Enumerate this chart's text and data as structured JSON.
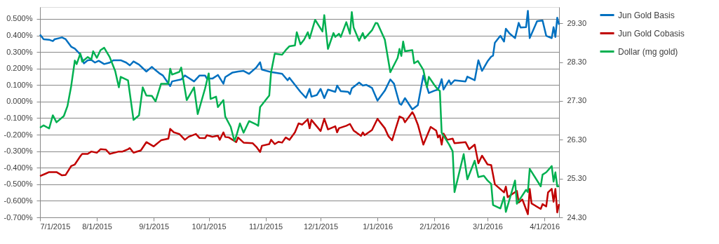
{
  "chart_data": {
    "type": "line",
    "xlim": [
      "2015-07-01",
      "2016-04-09"
    ],
    "xticks": [
      {
        "value": "2015-07-01",
        "label": "7/1/2015"
      },
      {
        "value": "2015-08-01",
        "label": "8/1/2015"
      },
      {
        "value": "2015-09-01",
        "label": "9/1/2015"
      },
      {
        "value": "2015-10-01",
        "label": "10/1/2015"
      },
      {
        "value": "2015-11-01",
        "label": "11/1/2015"
      },
      {
        "value": "2015-12-01",
        "label": "12/1/2015"
      },
      {
        "value": "2016-01-01",
        "label": "1/1/2016"
      },
      {
        "value": "2016-02-01",
        "label": "2/1/2016"
      },
      {
        "value": "2016-03-01",
        "label": "3/1/2016"
      },
      {
        "value": "2016-04-01",
        "label": "4/1/2016"
      }
    ],
    "ylim": [
      -0.7,
      0.572
    ],
    "yticks": [
      {
        "value": -0.7,
        "label": "-0.700%"
      },
      {
        "value": -0.6,
        "label": "-0.600%"
      },
      {
        "value": -0.5,
        "label": "-0.500%"
      },
      {
        "value": -0.4,
        "label": "-0.400%"
      },
      {
        "value": -0.3,
        "label": "-0.300%"
      },
      {
        "value": -0.2,
        "label": "-0.200%"
      },
      {
        "value": -0.1,
        "label": "-0.100%"
      },
      {
        "value": 0,
        "label": "0.000%"
      },
      {
        "value": 0.1,
        "label": "0.100%"
      },
      {
        "value": 0.2,
        "label": "0.200%"
      },
      {
        "value": 0.3,
        "label": "0.300%"
      },
      {
        "value": 0.4,
        "label": "0.400%"
      },
      {
        "value": 0.5,
        "label": "0.500%"
      }
    ],
    "y2lim": [
      24.3,
      29.72
    ],
    "y2ticks": [
      {
        "value": 24.3,
        "label": "24.30"
      },
      {
        "value": 25.3,
        "label": "25.30"
      },
      {
        "value": 26.3,
        "label": "26.30"
      },
      {
        "value": 27.3,
        "label": "27.30"
      },
      {
        "value": 28.3,
        "label": "28.30"
      },
      {
        "value": 29.3,
        "label": "29.30"
      }
    ],
    "grid": "y",
    "legend": "right",
    "line_style": "solid",
    "marker": "none",
    "series": [
      {
        "name": "Jun Gold Basis",
        "color": "#0070c0",
        "x": [
          "2015-07-01",
          "2015-07-03",
          "2015-07-06",
          "2015-07-08",
          "2015-07-09",
          "2015-07-13",
          "2015-07-15",
          "2015-07-18",
          "2015-07-20",
          "2015-07-23",
          "2015-07-25",
          "2015-07-27",
          "2015-07-29",
          "2015-07-31",
          "2015-08-02",
          "2015-08-05",
          "2015-08-08",
          "2015-08-10",
          "2015-08-14",
          "2015-08-17",
          "2015-08-19",
          "2015-08-21",
          "2015-08-24",
          "2015-08-28",
          "2015-08-31",
          "2015-09-02",
          "2015-09-04",
          "2015-09-06",
          "2015-09-10",
          "2015-09-11",
          "2015-09-16",
          "2015-09-18",
          "2015-09-20",
          "2015-09-23",
          "2015-09-26",
          "2015-09-29",
          "2015-09-30",
          "2015-10-03",
          "2015-10-06",
          "2015-10-09",
          "2015-10-10",
          "2015-10-14",
          "2015-10-17",
          "2015-10-20",
          "2015-10-23",
          "2015-10-27",
          "2015-10-29",
          "2015-10-30",
          "2015-11-04",
          "2015-11-10",
          "2015-11-13",
          "2015-11-14",
          "2015-11-17",
          "2015-11-20",
          "2015-11-23",
          "2015-11-25",
          "2015-11-26",
          "2015-11-29",
          "2015-12-01",
          "2015-12-03",
          "2015-12-05",
          "2015-12-09",
          "2015-12-10",
          "2015-12-12",
          "2015-12-16",
          "2015-12-17",
          "2015-12-18",
          "2015-12-22",
          "2015-12-24",
          "2015-12-26",
          "2015-12-29",
          "2016-01-01",
          "2016-01-05",
          "2016-01-08",
          "2016-01-10",
          "2016-01-13",
          "2016-01-14",
          "2016-01-16",
          "2016-01-20",
          "2016-01-23",
          "2016-01-26",
          "2016-01-29",
          "2016-02-01",
          "2016-02-03",
          "2016-02-04",
          "2016-02-05",
          "2016-02-06",
          "2016-02-09",
          "2016-02-10",
          "2016-02-12",
          "2016-02-18",
          "2016-02-19",
          "2016-02-23",
          "2016-02-25",
          "2016-02-27",
          "2016-03-01",
          "2016-03-03",
          "2016-03-04",
          "2016-03-05",
          "2016-03-08",
          "2016-03-10",
          "2016-03-11",
          "2016-03-13",
          "2016-03-16",
          "2016-03-18",
          "2016-03-19",
          "2016-03-22",
          "2016-03-23",
          "2016-03-24",
          "2016-03-28",
          "2016-03-31",
          "2016-04-02",
          "2016-04-05",
          "2016-04-06",
          "2016-04-07",
          "2016-04-08",
          "2016-04-09"
        ],
        "values": [
          0.405,
          0.377,
          0.374,
          0.366,
          0.377,
          0.388,
          0.377,
          0.332,
          0.32,
          0.285,
          0.231,
          0.25,
          0.252,
          0.236,
          0.247,
          0.227,
          0.236,
          0.25,
          0.25,
          0.236,
          0.219,
          0.243,
          0.224,
          0.182,
          0.21,
          0.19,
          0.172,
          0.158,
          0.094,
          0.122,
          0.134,
          0.158,
          0.144,
          0.122,
          0.158,
          0.158,
          0.139,
          0.139,
          0.161,
          0.108,
          0.148,
          0.176,
          0.182,
          0.186,
          0.168,
          0.207,
          0.238,
          0.193,
          0.179,
          0.168,
          0.129,
          0.144,
          0.101,
          0.059,
          0.023,
          0.077,
          0.03,
          0.04,
          0.077,
          0.021,
          0.073,
          0.059,
          0.097,
          0.063,
          0.059,
          0.045,
          0.08,
          0.115,
          0.097,
          0.101,
          0.083,
          0.006,
          0.066,
          0.134,
          0.108,
          -0.012,
          -0.019,
          0.021,
          -0.047,
          -0.022,
          0.158,
          0.052,
          0.066,
          0.073,
          0.101,
          0.136,
          0.073,
          0.129,
          0.105,
          0.129,
          0.122,
          0.151,
          0.129,
          0.25,
          0.186,
          0.243,
          0.272,
          0.278,
          0.356,
          0.398,
          0.363,
          0.441,
          0.412,
          0.384,
          0.476,
          0.448,
          0.45,
          0.549,
          0.384,
          0.486,
          0.49,
          0.398,
          0.384,
          0.45,
          0.391,
          0.507,
          0.465
        ]
      },
      {
        "name": "Jun Gold Cobasis",
        "color": "#c00000",
        "x": [
          "2015-07-01",
          "2015-07-04",
          "2015-07-06",
          "2015-07-10",
          "2015-07-13",
          "2015-07-15",
          "2015-07-18",
          "2015-07-20",
          "2015-07-23",
          "2015-07-24",
          "2015-07-27",
          "2015-07-29",
          "2015-08-01",
          "2015-08-03",
          "2015-08-06",
          "2015-08-08",
          "2015-08-13",
          "2015-08-15",
          "2015-08-18",
          "2015-08-19",
          "2015-08-21",
          "2015-08-25",
          "2015-08-28",
          "2015-09-01",
          "2015-09-05",
          "2015-09-09",
          "2015-09-10",
          "2015-09-12",
          "2015-09-15",
          "2015-09-18",
          "2015-09-20",
          "2015-09-24",
          "2015-09-26",
          "2015-09-29",
          "2015-09-30",
          "2015-10-03",
          "2015-10-06",
          "2015-10-07",
          "2015-10-09",
          "2015-10-10",
          "2015-10-12",
          "2015-10-16",
          "2015-10-17",
          "2015-10-20",
          "2015-10-25",
          "2015-10-27",
          "2015-10-29",
          "2015-10-30",
          "2015-11-03",
          "2015-11-04",
          "2015-11-06",
          "2015-11-08",
          "2015-11-10",
          "2015-11-12",
          "2015-11-14",
          "2015-11-17",
          "2015-11-19",
          "2015-11-21",
          "2015-11-24",
          "2015-11-25",
          "2015-11-26",
          "2015-12-01",
          "2015-12-03",
          "2015-12-05",
          "2015-12-09",
          "2015-12-10",
          "2015-12-11",
          "2015-12-15",
          "2015-12-17",
          "2015-12-19",
          "2015-12-23",
          "2015-12-24",
          "2015-12-25",
          "2015-12-29",
          "2016-01-01",
          "2016-01-05",
          "2016-01-07",
          "2016-01-09",
          "2016-01-11",
          "2016-01-13",
          "2016-01-15",
          "2016-01-16",
          "2016-01-20",
          "2016-01-21",
          "2016-01-23",
          "2016-01-26",
          "2016-01-30",
          "2016-02-02",
          "2016-02-03",
          "2016-02-04",
          "2016-02-05",
          "2016-02-06",
          "2016-02-08",
          "2016-02-11",
          "2016-02-12",
          "2016-02-18",
          "2016-02-20",
          "2016-02-23",
          "2016-02-25",
          "2016-02-27",
          "2016-03-01",
          "2016-03-03",
          "2016-03-05",
          "2016-03-10",
          "2016-03-11",
          "2016-03-12",
          "2016-03-17",
          "2016-03-18",
          "2016-03-20",
          "2016-03-23",
          "2016-03-24",
          "2016-03-25",
          "2016-03-30",
          "2016-03-31",
          "2016-04-02",
          "2016-04-03",
          "2016-04-05",
          "2016-04-06",
          "2016-04-07",
          "2016-04-08",
          "2016-04-09"
        ],
        "values": [
          -0.45,
          -0.436,
          -0.426,
          -0.426,
          -0.446,
          -0.443,
          -0.39,
          -0.38,
          -0.33,
          -0.316,
          -0.316,
          -0.302,
          -0.309,
          -0.288,
          -0.291,
          -0.316,
          -0.302,
          -0.302,
          -0.288,
          -0.281,
          -0.309,
          -0.295,
          -0.245,
          -0.271,
          -0.234,
          -0.224,
          -0.165,
          -0.186,
          -0.196,
          -0.231,
          -0.213,
          -0.196,
          -0.22,
          -0.221,
          -0.203,
          -0.213,
          -0.206,
          -0.231,
          -0.186,
          -0.214,
          -0.217,
          -0.245,
          -0.217,
          -0.248,
          -0.252,
          -0.274,
          -0.305,
          -0.267,
          -0.257,
          -0.231,
          -0.257,
          -0.243,
          -0.248,
          -0.217,
          -0.231,
          -0.186,
          -0.132,
          -0.139,
          -0.107,
          -0.161,
          -0.111,
          -0.178,
          -0.104,
          -0.168,
          -0.149,
          -0.186,
          -0.161,
          -0.146,
          -0.135,
          -0.175,
          -0.207,
          -0.186,
          -0.203,
          -0.172,
          -0.104,
          -0.161,
          -0.21,
          -0.234,
          -0.161,
          -0.09,
          -0.101,
          -0.125,
          -0.064,
          -0.083,
          -0.139,
          -0.26,
          -0.153,
          -0.175,
          -0.217,
          -0.203,
          -0.26,
          -0.193,
          -0.231,
          -0.224,
          -0.252,
          -0.245,
          -0.288,
          -0.26,
          -0.373,
          -0.327,
          -0.38,
          -0.384,
          -0.5,
          -0.549,
          -0.514,
          -0.578,
          -0.54,
          -0.61,
          -0.592,
          -0.681,
          -0.528,
          -0.616,
          -0.649,
          -0.62,
          -0.634,
          -0.549,
          -0.528,
          -0.606,
          -0.528,
          -0.67,
          -0.62
        ]
      },
      {
        "name": "Dollar (mg gold)",
        "color": "#00b050",
        "axis": "y2",
        "x": [
          "2015-07-01",
          "2015-07-03",
          "2015-07-06",
          "2015-07-08",
          "2015-07-10",
          "2015-07-14",
          "2015-07-16",
          "2015-07-18",
          "2015-07-20",
          "2015-07-21",
          "2015-07-23",
          "2015-07-24",
          "2015-07-27",
          "2015-07-29",
          "2015-07-30",
          "2015-08-01",
          "2015-08-03",
          "2015-08-05",
          "2015-08-08",
          "2015-08-11",
          "2015-08-13",
          "2015-08-14",
          "2015-08-18",
          "2015-08-21",
          "2015-08-24",
          "2015-08-26",
          "2015-08-28",
          "2015-08-31",
          "2015-09-02",
          "2015-09-05",
          "2015-09-09",
          "2015-09-10",
          "2015-09-11",
          "2015-09-15",
          "2015-09-16",
          "2015-09-19",
          "2015-09-23",
          "2015-09-25",
          "2015-09-29",
          "2015-10-01",
          "2015-10-02",
          "2015-10-05",
          "2015-10-06",
          "2015-10-09",
          "2015-10-10",
          "2015-10-13",
          "2015-10-15",
          "2015-10-16",
          "2015-10-18",
          "2015-10-20",
          "2015-10-23",
          "2015-10-27",
          "2015-10-28",
          "2015-10-29",
          "2015-11-02",
          "2015-11-03",
          "2015-11-04",
          "2015-11-06",
          "2015-11-10",
          "2015-11-12",
          "2015-11-14",
          "2015-11-17",
          "2015-11-18",
          "2015-11-20",
          "2015-11-22",
          "2015-11-24",
          "2015-11-25",
          "2015-11-28",
          "2015-12-02",
          "2015-12-03",
          "2015-12-05",
          "2015-12-08",
          "2015-12-09",
          "2015-12-11",
          "2015-12-12",
          "2015-12-15",
          "2015-12-17",
          "2015-12-18",
          "2015-12-19",
          "2015-12-22",
          "2015-12-24",
          "2015-12-25",
          "2015-12-29",
          "2015-12-31",
          "2016-01-01",
          "2016-01-05",
          "2016-01-08",
          "2016-01-12",
          "2016-01-13",
          "2016-01-14",
          "2016-01-15",
          "2016-01-16",
          "2016-01-20",
          "2016-01-21",
          "2016-01-23",
          "2016-01-26",
          "2016-01-28",
          "2016-01-29",
          "2016-02-01",
          "2016-02-03",
          "2016-02-04",
          "2016-02-05",
          "2016-02-07",
          "2016-02-09",
          "2016-02-11",
          "2016-02-12",
          "2016-02-17",
          "2016-02-19",
          "2016-02-23",
          "2016-02-25",
          "2016-02-28",
          "2016-03-01",
          "2016-03-03",
          "2016-03-04",
          "2016-03-08",
          "2016-03-10",
          "2016-03-11",
          "2016-03-16",
          "2016-03-17",
          "2016-03-22",
          "2016-03-23",
          "2016-03-24",
          "2016-03-30",
          "2016-03-31",
          "2016-04-02",
          "2016-04-05",
          "2016-04-06",
          "2016-04-07",
          "2016-04-08",
          "2016-04-09"
        ],
        "values": [
          26.61,
          26.67,
          26.59,
          26.93,
          26.75,
          26.91,
          27.17,
          27.68,
          28.34,
          28.25,
          28.52,
          28.31,
          28.43,
          28.37,
          28.58,
          28.41,
          28.61,
          28.67,
          28.43,
          28.07,
          27.65,
          27.92,
          27.83,
          26.81,
          26.93,
          27.65,
          27.44,
          27.43,
          27.29,
          27.74,
          27.74,
          28.13,
          27.98,
          28.05,
          28.16,
          27.32,
          27.65,
          26.96,
          27.62,
          28.01,
          27.35,
          27.41,
          27.14,
          27.32,
          26.9,
          26.63,
          26.27,
          26.39,
          26.72,
          26.48,
          26.78,
          26.69,
          26.66,
          27.14,
          27.38,
          27.44,
          28.04,
          28.52,
          28.49,
          28.61,
          28.71,
          28.73,
          29.07,
          28.76,
          28.88,
          29.07,
          28.91,
          29.39,
          29.09,
          29.51,
          28.64,
          29.05,
          28.95,
          29.03,
          28.95,
          29.33,
          29.03,
          29.59,
          29.19,
          28.85,
          29.05,
          28.91,
          29.12,
          29.31,
          29.3,
          28.88,
          28.04,
          28.41,
          28.64,
          28.46,
          28.83,
          28.58,
          28.61,
          28.27,
          28.33,
          28.1,
          27.65,
          27.92,
          27.71,
          27.59,
          27.56,
          26.48,
          26.33,
          26.18,
          26.0,
          24.95,
          25.93,
          25.28,
          25.76,
          25.34,
          25.37,
          25.25,
          25.16,
          24.62,
          24.53,
          24.83,
          24.44,
          25.25,
          24.65,
          25.01,
          24.95,
          25.55,
          25.1,
          25.4,
          25.46,
          25.62,
          25.22,
          25.46,
          25.1,
          25.1
        ]
      }
    ]
  }
}
